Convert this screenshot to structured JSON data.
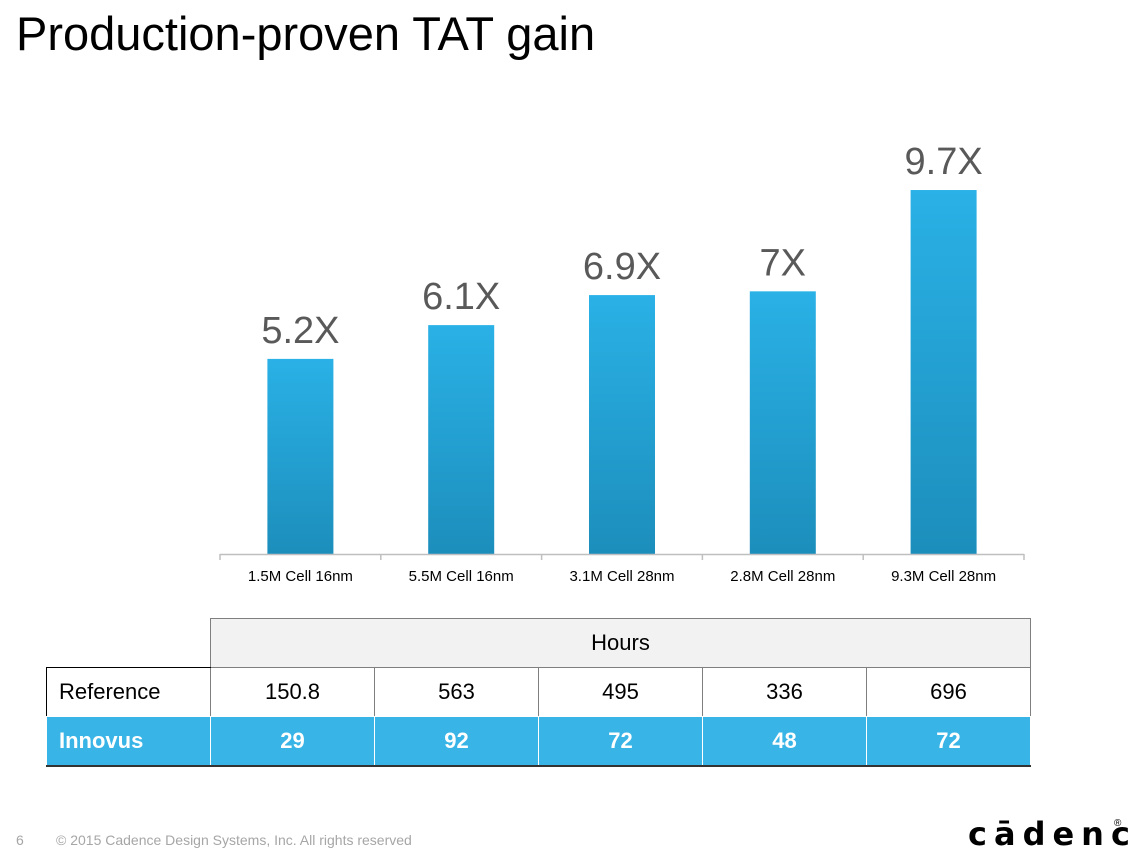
{
  "title": "Production-proven TAT gain",
  "chart_data": {
    "type": "bar",
    "categories": [
      "1.5M Cell 16nm",
      "5.5M Cell 16nm",
      "3.1M Cell 28nm",
      "2.8M Cell 28nm",
      "9.3M Cell 28nm"
    ],
    "values": [
      5.2,
      6.1,
      6.9,
      7,
      9.7
    ],
    "data_labels": [
      "5.2X",
      "6.1X",
      "6.9X",
      "7X",
      "9.7X"
    ],
    "ylim": [
      0,
      10.9
    ],
    "grid": false,
    "bar_color": "#29a8dc"
  },
  "table": {
    "header": "Hours",
    "rows": [
      {
        "name": "Reference",
        "values": [
          "150.8",
          "563",
          "495",
          "336",
          "696"
        ]
      },
      {
        "name": "Innovus",
        "values": [
          "29",
          "92",
          "72",
          "48",
          "72"
        ]
      }
    ]
  },
  "footer": {
    "page_number": "6",
    "copyright": "© 2015 Cadence Design Systems, Inc. All rights reserved",
    "logo": "cādence",
    "logo_mark": "®"
  },
  "colors": {
    "accent": "#39b4e6",
    "bar_top": "#29b0e6",
    "bar_bottom": "#1d8fbd"
  }
}
